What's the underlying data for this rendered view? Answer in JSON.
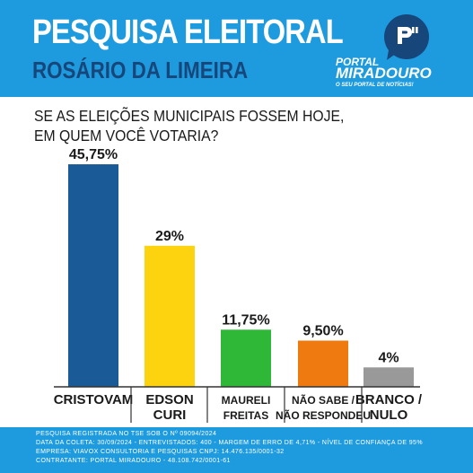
{
  "header": {
    "title": "PESQUISA ELEITORAL",
    "subtitle": "ROSÁRIO DA LIMEIRA",
    "logo": {
      "portal": "PORTAL",
      "name": "MIRADOURO",
      "tagline": "O SEU PORTAL DE NOTÍCIAS!",
      "icon": "speech-bubble-logo-icon"
    }
  },
  "question": {
    "line1": "SE AS ELEIÇÕES MUNICIPAIS FOSSEM HOJE,",
    "line2": "EM QUEM VOCÊ VOTARIA?"
  },
  "colors": {
    "header_bg": "#1e9bdf",
    "subtitle": "#17467a",
    "footer_bg": "#1e9bdf"
  },
  "chart_data": {
    "type": "bar",
    "title": "",
    "xlabel": "",
    "ylabel": "",
    "ylim": [
      0,
      50
    ],
    "categories": [
      [
        "CRISTOVAM"
      ],
      [
        "EDSON",
        "CURI"
      ],
      [
        "MAURELI",
        "FREITAS"
      ],
      [
        "NÃO SABE /",
        "NÃO RESPONDEU"
      ],
      [
        "BRANCO /",
        "NULO"
      ]
    ],
    "values": [
      45.75,
      29,
      11.75,
      9.5,
      4
    ],
    "value_labels": [
      "45,75%",
      "29%",
      "11,75%",
      "9,50%",
      "4%"
    ],
    "colors": [
      "#1a5a97",
      "#fdd30f",
      "#2fb737",
      "#ee7a10",
      "#999999"
    ],
    "grid": false,
    "legend": "none"
  },
  "footer": {
    "lines": [
      "PESQUISA REGISTRADA NO TSE SOB O Nº 09094/2024",
      "DATA DA COLETA: 30/09/2024 - ENTREVISTADOS: 400 - MARGEM DE ERRO DE 4,71% - NÍVEL DE CONFIANÇA DE 95%",
      "EMPRESA: VIAVOX CONSULTORIA E PESQUISAS CNPJ: 14.476.135/0001-32",
      "CONTRATANTE: PORTAL MIRADOURO - 48.108.742/0001-61"
    ]
  }
}
